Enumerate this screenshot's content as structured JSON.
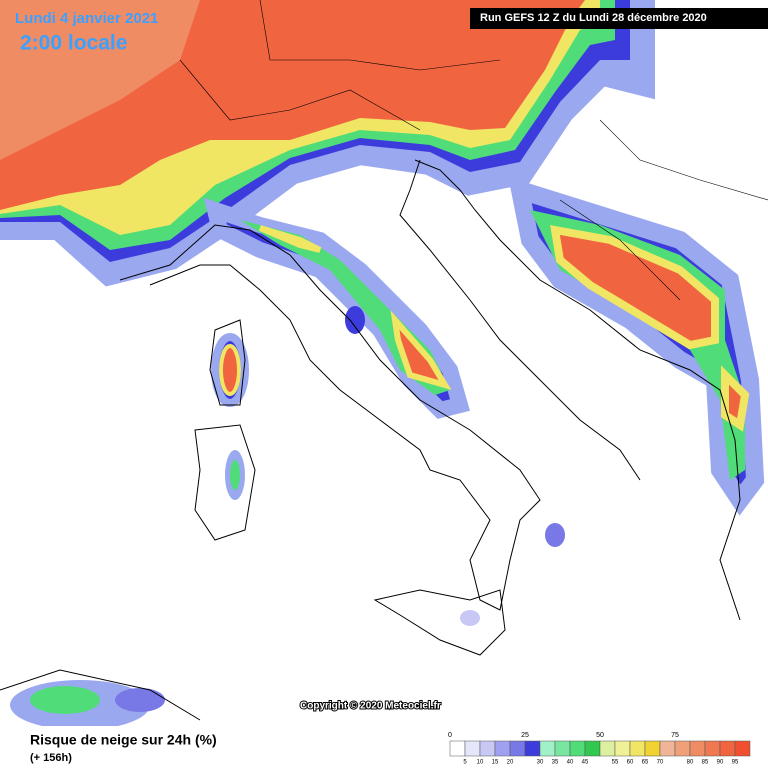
{
  "header": {
    "date": "Lundi 4 janvier 2021",
    "time": "2:00 locale",
    "run": "Run GEFS 12 Z du Lundi 28 décembre 2020"
  },
  "copyright": "Copyright © 2020 Meteociel.fr",
  "footer": {
    "title": "Risque de neige sur 24h (%)",
    "lead": "(+ 156h)"
  },
  "legend": {
    "colors": [
      "#ffffff",
      "#e6e6fa",
      "#c8c8f5",
      "#a0a0f0",
      "#7878e6",
      "#3c3cdc",
      "#a0f0c8",
      "#78e6a0",
      "#50dc78",
      "#32c850",
      "#dcf0a0",
      "#f0f096",
      "#f0e664",
      "#f0d232",
      "#f0b496",
      "#f0a078",
      "#f08c64",
      "#f07850",
      "#f06440",
      "#f05030"
    ],
    "major": [
      "0",
      "25",
      "50",
      "75"
    ],
    "minor": [
      "5",
      "10",
      "15",
      "20",
      "30",
      "35",
      "40",
      "45",
      "55",
      "60",
      "65",
      "70",
      "80",
      "85",
      "90",
      "95"
    ]
  }
}
